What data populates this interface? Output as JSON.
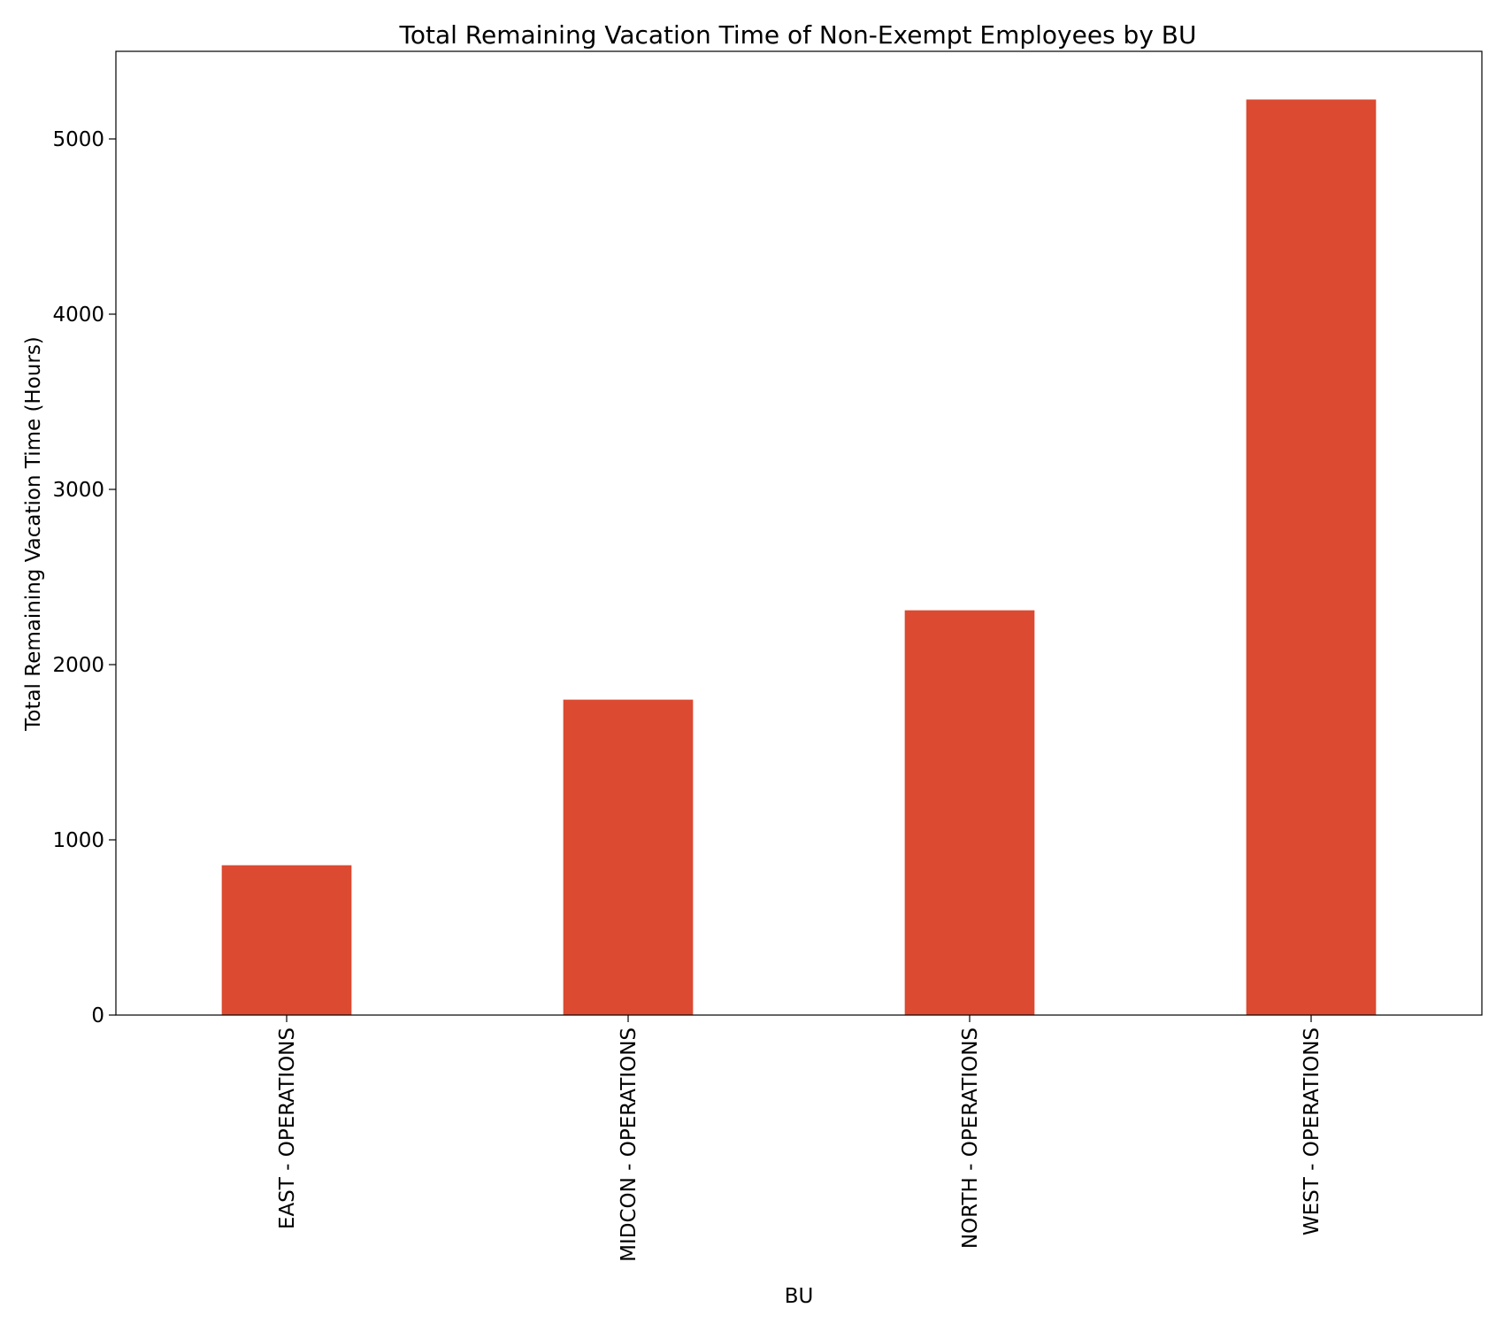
{
  "chart_data": {
    "type": "bar",
    "title": "Total Remaining Vacation Time of Non-Exempt Employees by BU",
    "xlabel": "BU",
    "ylabel": "Total Remaining Vacation Time (Hours)",
    "categories": [
      "EAST - OPERATIONS",
      "MIDCON - OPERATIONS",
      "NORTH - OPERATIONS",
      "WEST - OPERATIONS"
    ],
    "values": [
      855,
      1800,
      2310,
      5225
    ],
    "ylim": [
      0,
      5500
    ],
    "yticks": [
      0,
      1000,
      2000,
      3000,
      4000,
      5000
    ],
    "bar_color": "#db4a31",
    "grid": false,
    "legend": "none"
  }
}
